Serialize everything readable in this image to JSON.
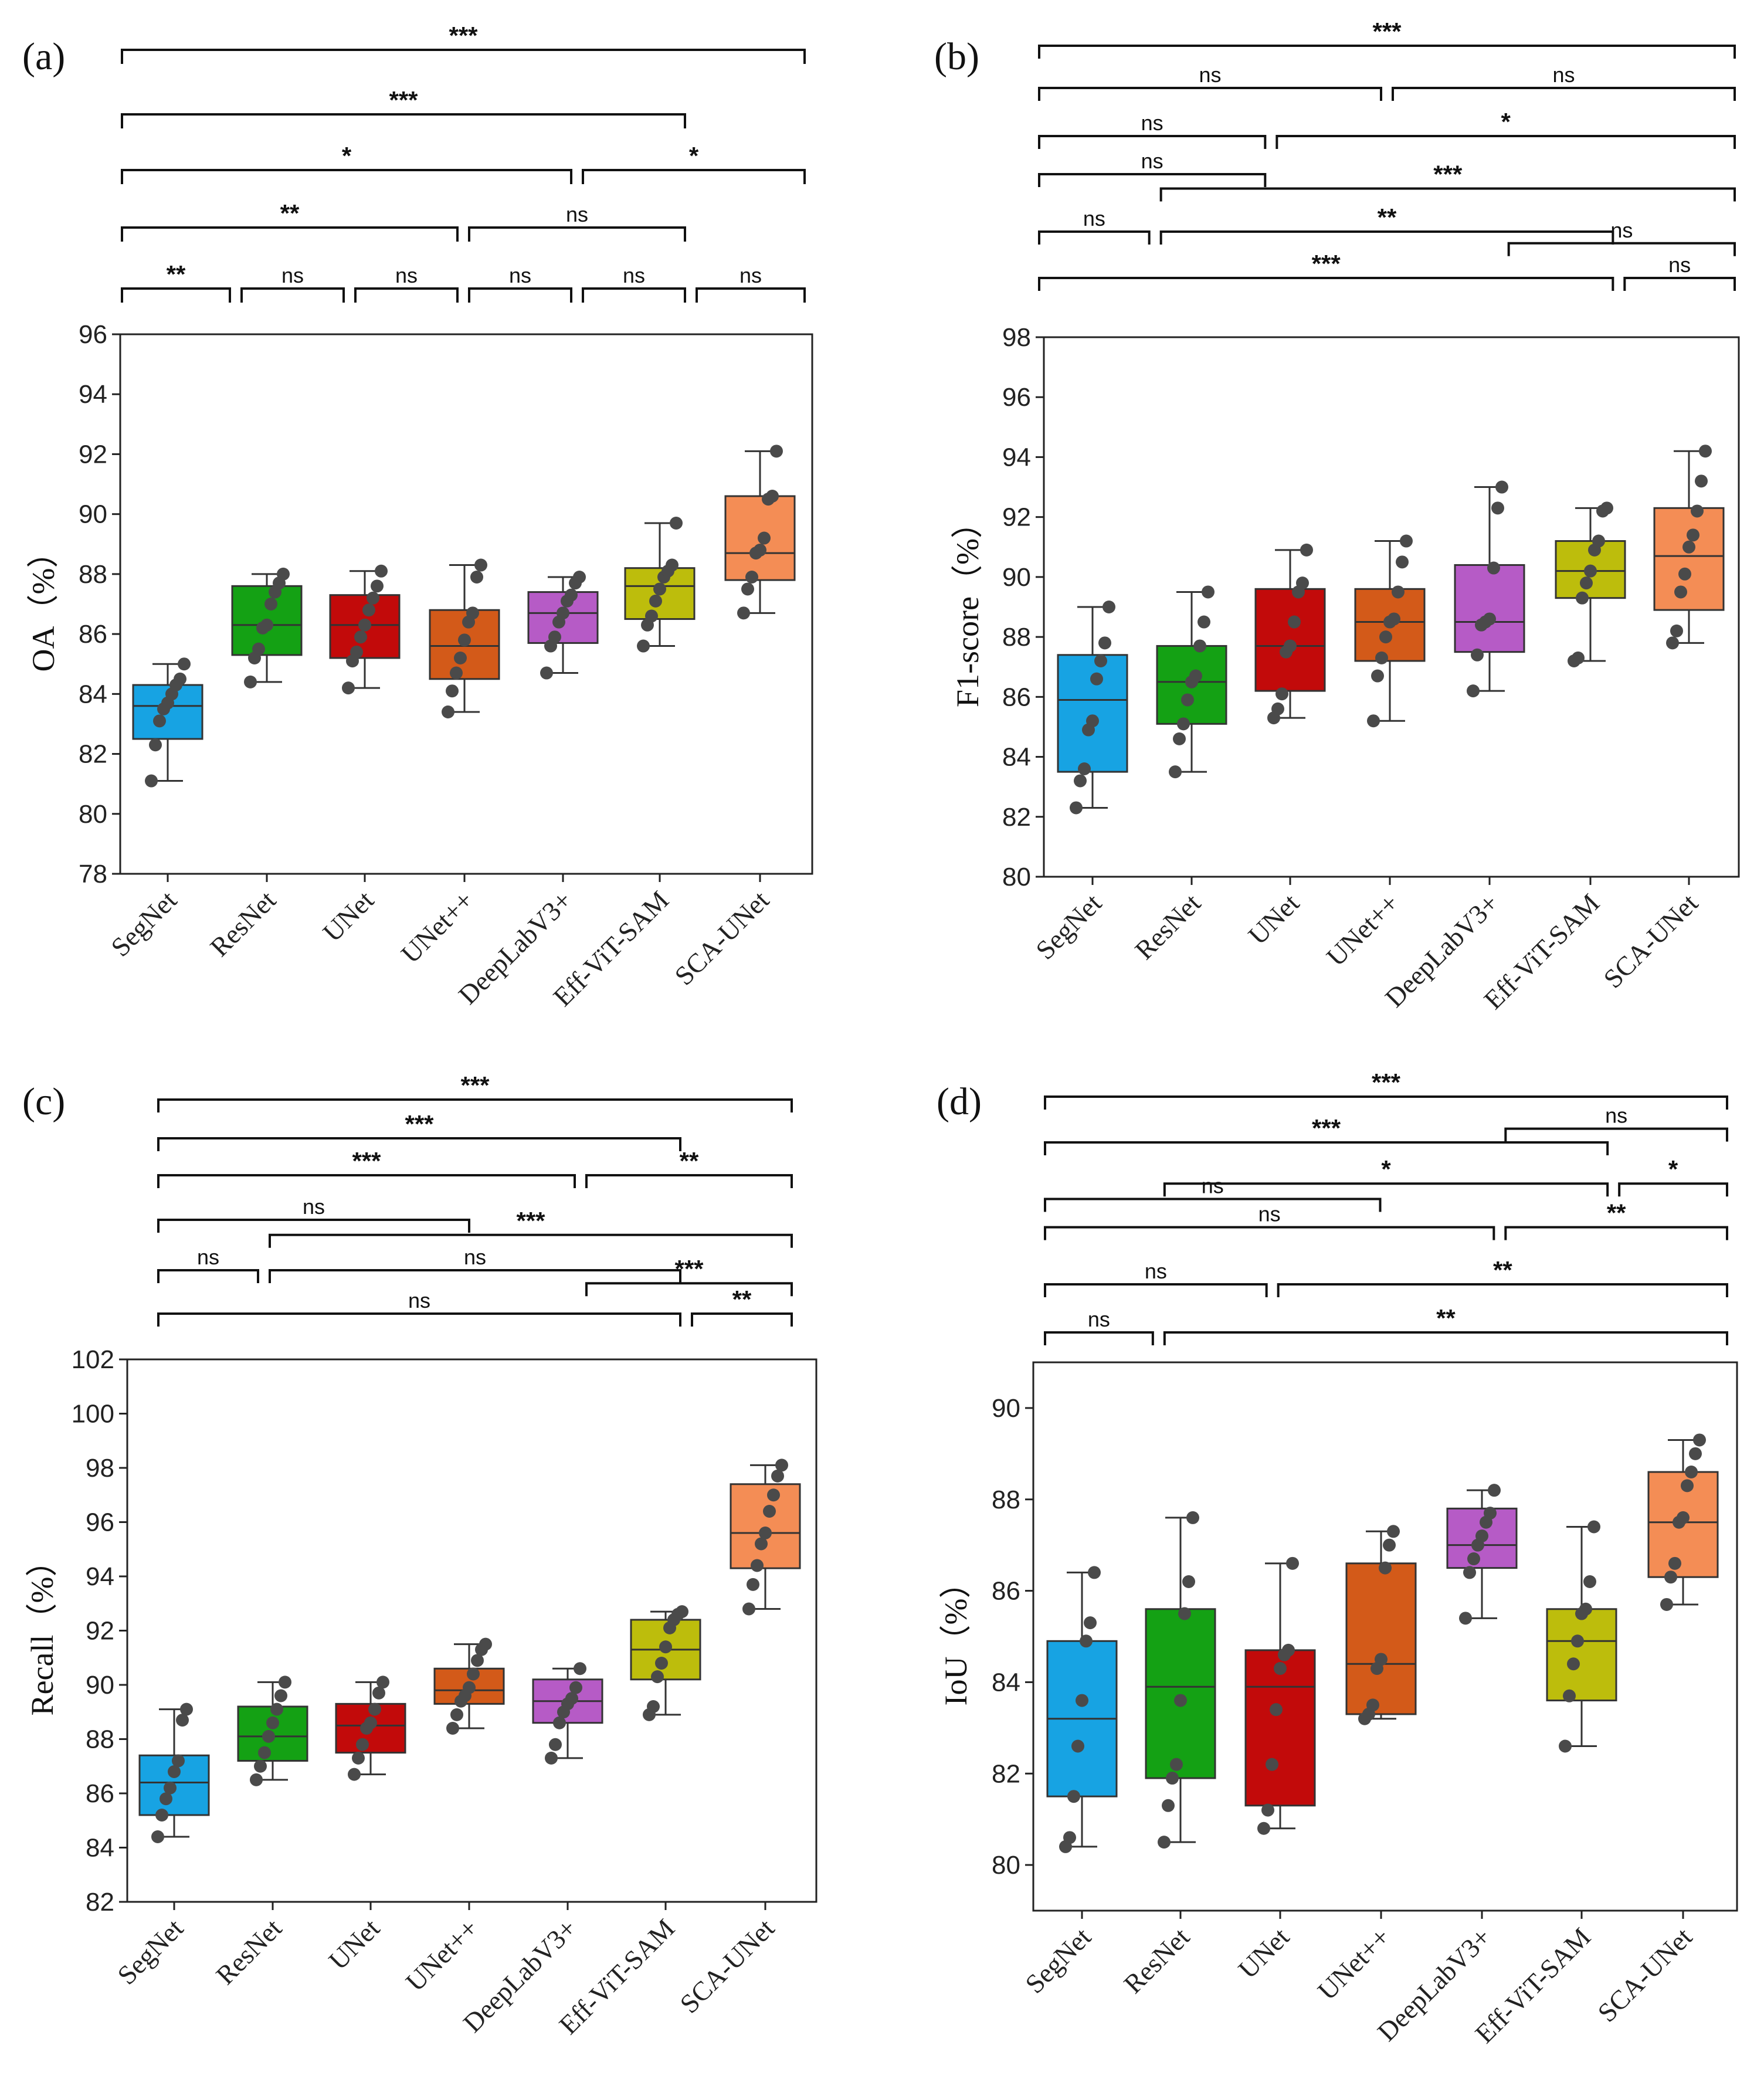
{
  "colors": {
    "box_fills": [
      "#17A3E3",
      "#14A114",
      "#C20A0A",
      "#D35A19",
      "#B65BC6",
      "#BDBD0C",
      "#F48D55"
    ],
    "point": "#4a4a4a",
    "line": "#222222"
  },
  "chart_data": [
    {
      "type": "box",
      "panel": "(a)",
      "ylabel": "OA（%）",
      "ylim": [
        78,
        96
      ],
      "yticks": [
        78,
        80,
        82,
        84,
        86,
        88,
        90,
        92,
        94,
        96
      ],
      "categories": [
        "SegNet",
        "ResNet",
        "UNet",
        "UNet++",
        "DeepLabV3+",
        "Eff-ViT-SAM",
        "SCA-UNet"
      ],
      "boxes": [
        {
          "min": 81.1,
          "q1": 82.5,
          "median": 83.6,
          "q3": 84.3,
          "max": 85.0
        },
        {
          "min": 84.4,
          "q1": 85.3,
          "median": 86.3,
          "q3": 87.6,
          "max": 88.0
        },
        {
          "min": 84.2,
          "q1": 85.2,
          "median": 86.3,
          "q3": 87.3,
          "max": 88.1
        },
        {
          "min": 83.4,
          "q1": 84.5,
          "median": 85.6,
          "q3": 86.8,
          "max": 88.3
        },
        {
          "min": 84.7,
          "q1": 85.7,
          "median": 86.7,
          "q3": 87.4,
          "max": 87.9
        },
        {
          "min": 85.6,
          "q1": 86.5,
          "median": 87.6,
          "q3": 88.2,
          "max": 89.7
        },
        {
          "min": 86.7,
          "q1": 87.8,
          "median": 88.7,
          "q3": 90.6,
          "max": 92.1
        }
      ],
      "points": [
        [
          81.1,
          82.3,
          83.1,
          83.5,
          83.7,
          84.0,
          84.3,
          84.5,
          85.0
        ],
        [
          84.4,
          85.2,
          85.5,
          86.2,
          86.3,
          87.0,
          87.4,
          87.7,
          88.0
        ],
        [
          84.2,
          85.1,
          85.4,
          85.9,
          86.3,
          86.8,
          87.2,
          87.6,
          88.1
        ],
        [
          83.4,
          84.1,
          84.7,
          85.2,
          85.8,
          86.4,
          86.7,
          87.9,
          88.3
        ],
        [
          84.7,
          85.6,
          85.9,
          86.4,
          86.7,
          87.1,
          87.3,
          87.7,
          87.9
        ],
        [
          85.6,
          86.3,
          86.6,
          87.1,
          87.5,
          87.9,
          88.1,
          88.3,
          89.7
        ],
        [
          86.7,
          87.5,
          87.9,
          88.7,
          88.8,
          89.2,
          90.5,
          90.6,
          92.1
        ]
      ],
      "significance": [
        {
          "from": 0,
          "to": 6,
          "label": "***",
          "level": 0
        },
        {
          "from": 0,
          "to": 5,
          "label": "***",
          "level": 1
        },
        {
          "from": 0,
          "to": 4,
          "label": "*",
          "level": 2
        },
        {
          "from": 4,
          "to": 6,
          "label": "*",
          "level": 2
        },
        {
          "from": 0,
          "to": 3,
          "label": "**",
          "level": 3
        },
        {
          "from": 3,
          "to": 5,
          "label": "ns",
          "level": 3
        },
        {
          "from": 0,
          "to": 1,
          "label": "**",
          "level": 4
        },
        {
          "from": 1,
          "to": 2,
          "label": "ns",
          "level": 4
        },
        {
          "from": 2,
          "to": 3,
          "label": "ns",
          "level": 4
        },
        {
          "from": 3,
          "to": 4,
          "label": "ns",
          "level": 4
        },
        {
          "from": 4,
          "to": 5,
          "label": "ns",
          "level": 4
        },
        {
          "from": 5,
          "to": 6,
          "label": "ns",
          "level": 4
        }
      ]
    },
    {
      "type": "box",
      "panel": "(b)",
      "ylabel": "F1-score（%）",
      "ylim": [
        80,
        98
      ],
      "yticks": [
        80,
        82,
        84,
        86,
        88,
        90,
        92,
        94,
        96,
        98
      ],
      "categories": [
        "SegNet",
        "ResNet",
        "UNet",
        "UNet++",
        "DeepLabV3+",
        "Eff-ViT-SAM",
        "SCA-UNet"
      ],
      "boxes": [
        {
          "min": 82.3,
          "q1": 83.5,
          "median": 85.9,
          "q3": 87.4,
          "max": 89.0
        },
        {
          "min": 83.5,
          "q1": 85.1,
          "median": 86.5,
          "q3": 87.7,
          "max": 89.5
        },
        {
          "min": 85.3,
          "q1": 86.2,
          "median": 87.7,
          "q3": 89.6,
          "max": 90.9
        },
        {
          "min": 85.2,
          "q1": 87.2,
          "median": 88.5,
          "q3": 89.6,
          "max": 91.2
        },
        {
          "min": 86.2,
          "q1": 87.5,
          "median": 88.5,
          "q3": 90.4,
          "max": 93.0
        },
        {
          "min": 87.2,
          "q1": 89.3,
          "median": 90.2,
          "q3": 91.2,
          "max": 92.3
        },
        {
          "min": 87.8,
          "q1": 88.9,
          "median": 90.7,
          "q3": 92.3,
          "max": 94.2
        }
      ],
      "points": [
        [
          82.3,
          83.2,
          83.6,
          84.9,
          85.2,
          86.6,
          87.2,
          87.8,
          89.0
        ],
        [
          83.5,
          84.6,
          85.1,
          85.9,
          86.5,
          86.7,
          87.7,
          88.5,
          89.5
        ],
        [
          85.3,
          85.6,
          86.1,
          87.5,
          87.7,
          88.5,
          89.5,
          89.8,
          90.9
        ],
        [
          85.2,
          86.7,
          87.3,
          88.0,
          88.5,
          88.6,
          89.5,
          90.5,
          91.2
        ],
        [
          86.2,
          87.4,
          88.4,
          88.5,
          88.6,
          90.3,
          92.3,
          93.0
        ],
        [
          87.2,
          87.3,
          89.3,
          89.8,
          90.2,
          90.9,
          91.2,
          92.2,
          92.3
        ],
        [
          87.8,
          88.2,
          89.5,
          90.1,
          91.0,
          91.4,
          92.2,
          93.2,
          94.2
        ]
      ],
      "significance": [
        {
          "from": 0,
          "to": 6,
          "label": "***",
          "level": 0
        },
        {
          "from": 0,
          "to": 3,
          "label": "ns",
          "level": 1
        },
        {
          "from": 3,
          "to": 6,
          "label": "ns",
          "level": 1
        },
        {
          "from": 0,
          "to": 2,
          "label": "ns",
          "level": 2
        },
        {
          "from": 2,
          "to": 6,
          "label": "*",
          "level": 2
        },
        {
          "from": 0,
          "to": 2,
          "label": "ns",
          "level": 3
        },
        {
          "from": 1,
          "to": 6,
          "label": "***",
          "level": 3.25
        },
        {
          "from": 0,
          "to": 1,
          "label": "ns",
          "level": 4
        },
        {
          "from": 1,
          "to": 5,
          "label": "**",
          "level": 4
        },
        {
          "from": 4,
          "to": 6,
          "label": "ns",
          "level": 4.25
        },
        {
          "from": 0,
          "to": 5,
          "label": "***",
          "level": 5
        },
        {
          "from": 5,
          "to": 6,
          "label": "ns",
          "level": 5
        }
      ]
    },
    {
      "type": "box",
      "panel": "(c)",
      "ylabel": "Recall（%）",
      "ylim": [
        82,
        102
      ],
      "yticks": [
        82,
        84,
        86,
        88,
        90,
        92,
        94,
        96,
        98,
        100,
        102
      ],
      "categories": [
        "SegNet",
        "ResNet",
        "UNet",
        "UNet++",
        "DeepLabV3+",
        "Eff-ViT-SAM",
        "SCA-UNet"
      ],
      "boxes": [
        {
          "min": 84.4,
          "q1": 85.2,
          "median": 86.4,
          "q3": 87.4,
          "max": 89.1
        },
        {
          "min": 86.5,
          "q1": 87.2,
          "median": 88.1,
          "q3": 89.2,
          "max": 90.1
        },
        {
          "min": 86.7,
          "q1": 87.5,
          "median": 88.5,
          "q3": 89.3,
          "max": 90.1
        },
        {
          "min": 88.4,
          "q1": 89.3,
          "median": 89.8,
          "q3": 90.6,
          "max": 91.5
        },
        {
          "min": 87.3,
          "q1": 88.6,
          "median": 89.4,
          "q3": 90.2,
          "max": 90.6
        },
        {
          "min": 88.9,
          "q1": 90.2,
          "median": 91.3,
          "q3": 92.4,
          "max": 92.7
        },
        {
          "min": 92.8,
          "q1": 94.3,
          "median": 95.6,
          "q3": 97.4,
          "max": 98.1
        }
      ],
      "points": [
        [
          84.4,
          85.2,
          85.8,
          86.2,
          86.8,
          87.2,
          88.7,
          89.1
        ],
        [
          86.5,
          87.0,
          87.5,
          88.1,
          88.6,
          89.1,
          89.6,
          90.1
        ],
        [
          86.7,
          87.3,
          87.8,
          88.4,
          88.6,
          89.1,
          89.7,
          90.1
        ],
        [
          88.4,
          88.9,
          89.4,
          89.6,
          89.9,
          90.4,
          90.9,
          91.3,
          91.5
        ],
        [
          87.3,
          87.8,
          88.6,
          89.0,
          89.3,
          89.5,
          89.9,
          90.6
        ],
        [
          88.9,
          89.2,
          90.3,
          90.8,
          91.4,
          92.1,
          92.4,
          92.6,
          92.7
        ],
        [
          92.8,
          93.7,
          94.4,
          95.2,
          95.6,
          96.4,
          97.0,
          97.7,
          98.1
        ]
      ],
      "significance": [
        {
          "from": 0,
          "to": 6,
          "label": "***",
          "level": 0
        },
        {
          "from": 0,
          "to": 5,
          "label": "***",
          "level": 1
        },
        {
          "from": 0,
          "to": 4,
          "label": "***",
          "level": 2
        },
        {
          "from": 4,
          "to": 6,
          "label": "**",
          "level": 2
        },
        {
          "from": 0,
          "to": 3,
          "label": "ns",
          "level": 3
        },
        {
          "from": 1,
          "to": 6,
          "label": "***",
          "level": 3.3
        },
        {
          "from": 0,
          "to": 1,
          "label": "ns",
          "level": 4
        },
        {
          "from": 1,
          "to": 5,
          "label": "ns",
          "level": 4
        },
        {
          "from": 4,
          "to": 6,
          "label": "***",
          "level": 4.3
        },
        {
          "from": 0,
          "to": 5,
          "label": "ns",
          "level": 5
        },
        {
          "from": 5,
          "to": 6,
          "label": "**",
          "level": 5
        }
      ]
    },
    {
      "type": "box",
      "panel": "(d)",
      "ylabel": "IoU（%）",
      "ylim": [
        79,
        91
      ],
      "yticks": [
        80,
        82,
        84,
        86,
        88,
        90
      ],
      "categories": [
        "SegNet",
        "ResNet",
        "UNet",
        "UNet++",
        "DeepLabV3+",
        "Eff-ViT-SAM",
        "SCA-UNet"
      ],
      "boxes": [
        {
          "min": 80.4,
          "q1": 81.5,
          "median": 83.2,
          "q3": 84.9,
          "max": 86.4
        },
        {
          "min": 80.5,
          "q1": 81.9,
          "median": 83.9,
          "q3": 85.6,
          "max": 87.6
        },
        {
          "min": 80.8,
          "q1": 81.3,
          "median": 83.9,
          "q3": 84.7,
          "max": 86.6
        },
        {
          "min": 83.2,
          "q1": 83.3,
          "median": 84.4,
          "q3": 86.6,
          "max": 87.3
        },
        {
          "min": 85.4,
          "q1": 86.5,
          "median": 87.0,
          "q3": 87.8,
          "max": 88.2
        },
        {
          "min": 82.6,
          "q1": 83.6,
          "median": 84.9,
          "q3": 85.6,
          "max": 87.4
        },
        {
          "min": 85.7,
          "q1": 86.3,
          "median": 87.5,
          "q3": 88.6,
          "max": 89.3
        }
      ],
      "points": [
        [
          80.4,
          80.6,
          81.5,
          82.6,
          83.6,
          84.9,
          85.3,
          86.4
        ],
        [
          80.5,
          81.3,
          81.9,
          82.2,
          83.6,
          85.5,
          86.2,
          87.6
        ],
        [
          80.8,
          81.2,
          82.2,
          83.4,
          84.3,
          84.6,
          84.7,
          86.6
        ],
        [
          83.2,
          83.3,
          83.5,
          84.3,
          84.5,
          86.5,
          87.0,
          87.3
        ],
        [
          85.4,
          86.4,
          86.7,
          87.0,
          87.2,
          87.5,
          87.7,
          88.2
        ],
        [
          82.6,
          83.7,
          84.4,
          84.9,
          85.5,
          85.6,
          86.2,
          87.4
        ],
        [
          85.7,
          86.3,
          86.6,
          87.5,
          87.6,
          88.3,
          88.6,
          89.0,
          89.3
        ]
      ],
      "significance": [
        {
          "from": 0,
          "to": 6,
          "label": "***",
          "level": 0
        },
        {
          "from": 0,
          "to": 5,
          "label": "***",
          "level": 1
        },
        {
          "from": 4,
          "to": 6,
          "label": "ns",
          "level": 0.7
        },
        {
          "from": 0,
          "to": 3,
          "label": "ns",
          "level": 2.25
        },
        {
          "from": 1,
          "to": 5,
          "label": "*",
          "level": 1.9
        },
        {
          "from": 5,
          "to": 6,
          "label": "*",
          "level": 1.9
        },
        {
          "from": 0,
          "to": 4,
          "label": "ns",
          "level": 2.9
        },
        {
          "from": 4,
          "to": 6,
          "label": "**",
          "level": 2.9
        },
        {
          "from": 0,
          "to": 2,
          "label": "ns",
          "level": 4
        },
        {
          "from": 2,
          "to": 6,
          "label": "**",
          "level": 4
        },
        {
          "from": 0,
          "to": 1,
          "label": "ns",
          "level": 5
        },
        {
          "from": 1,
          "to": 6,
          "label": "**",
          "level": 5
        }
      ]
    }
  ]
}
